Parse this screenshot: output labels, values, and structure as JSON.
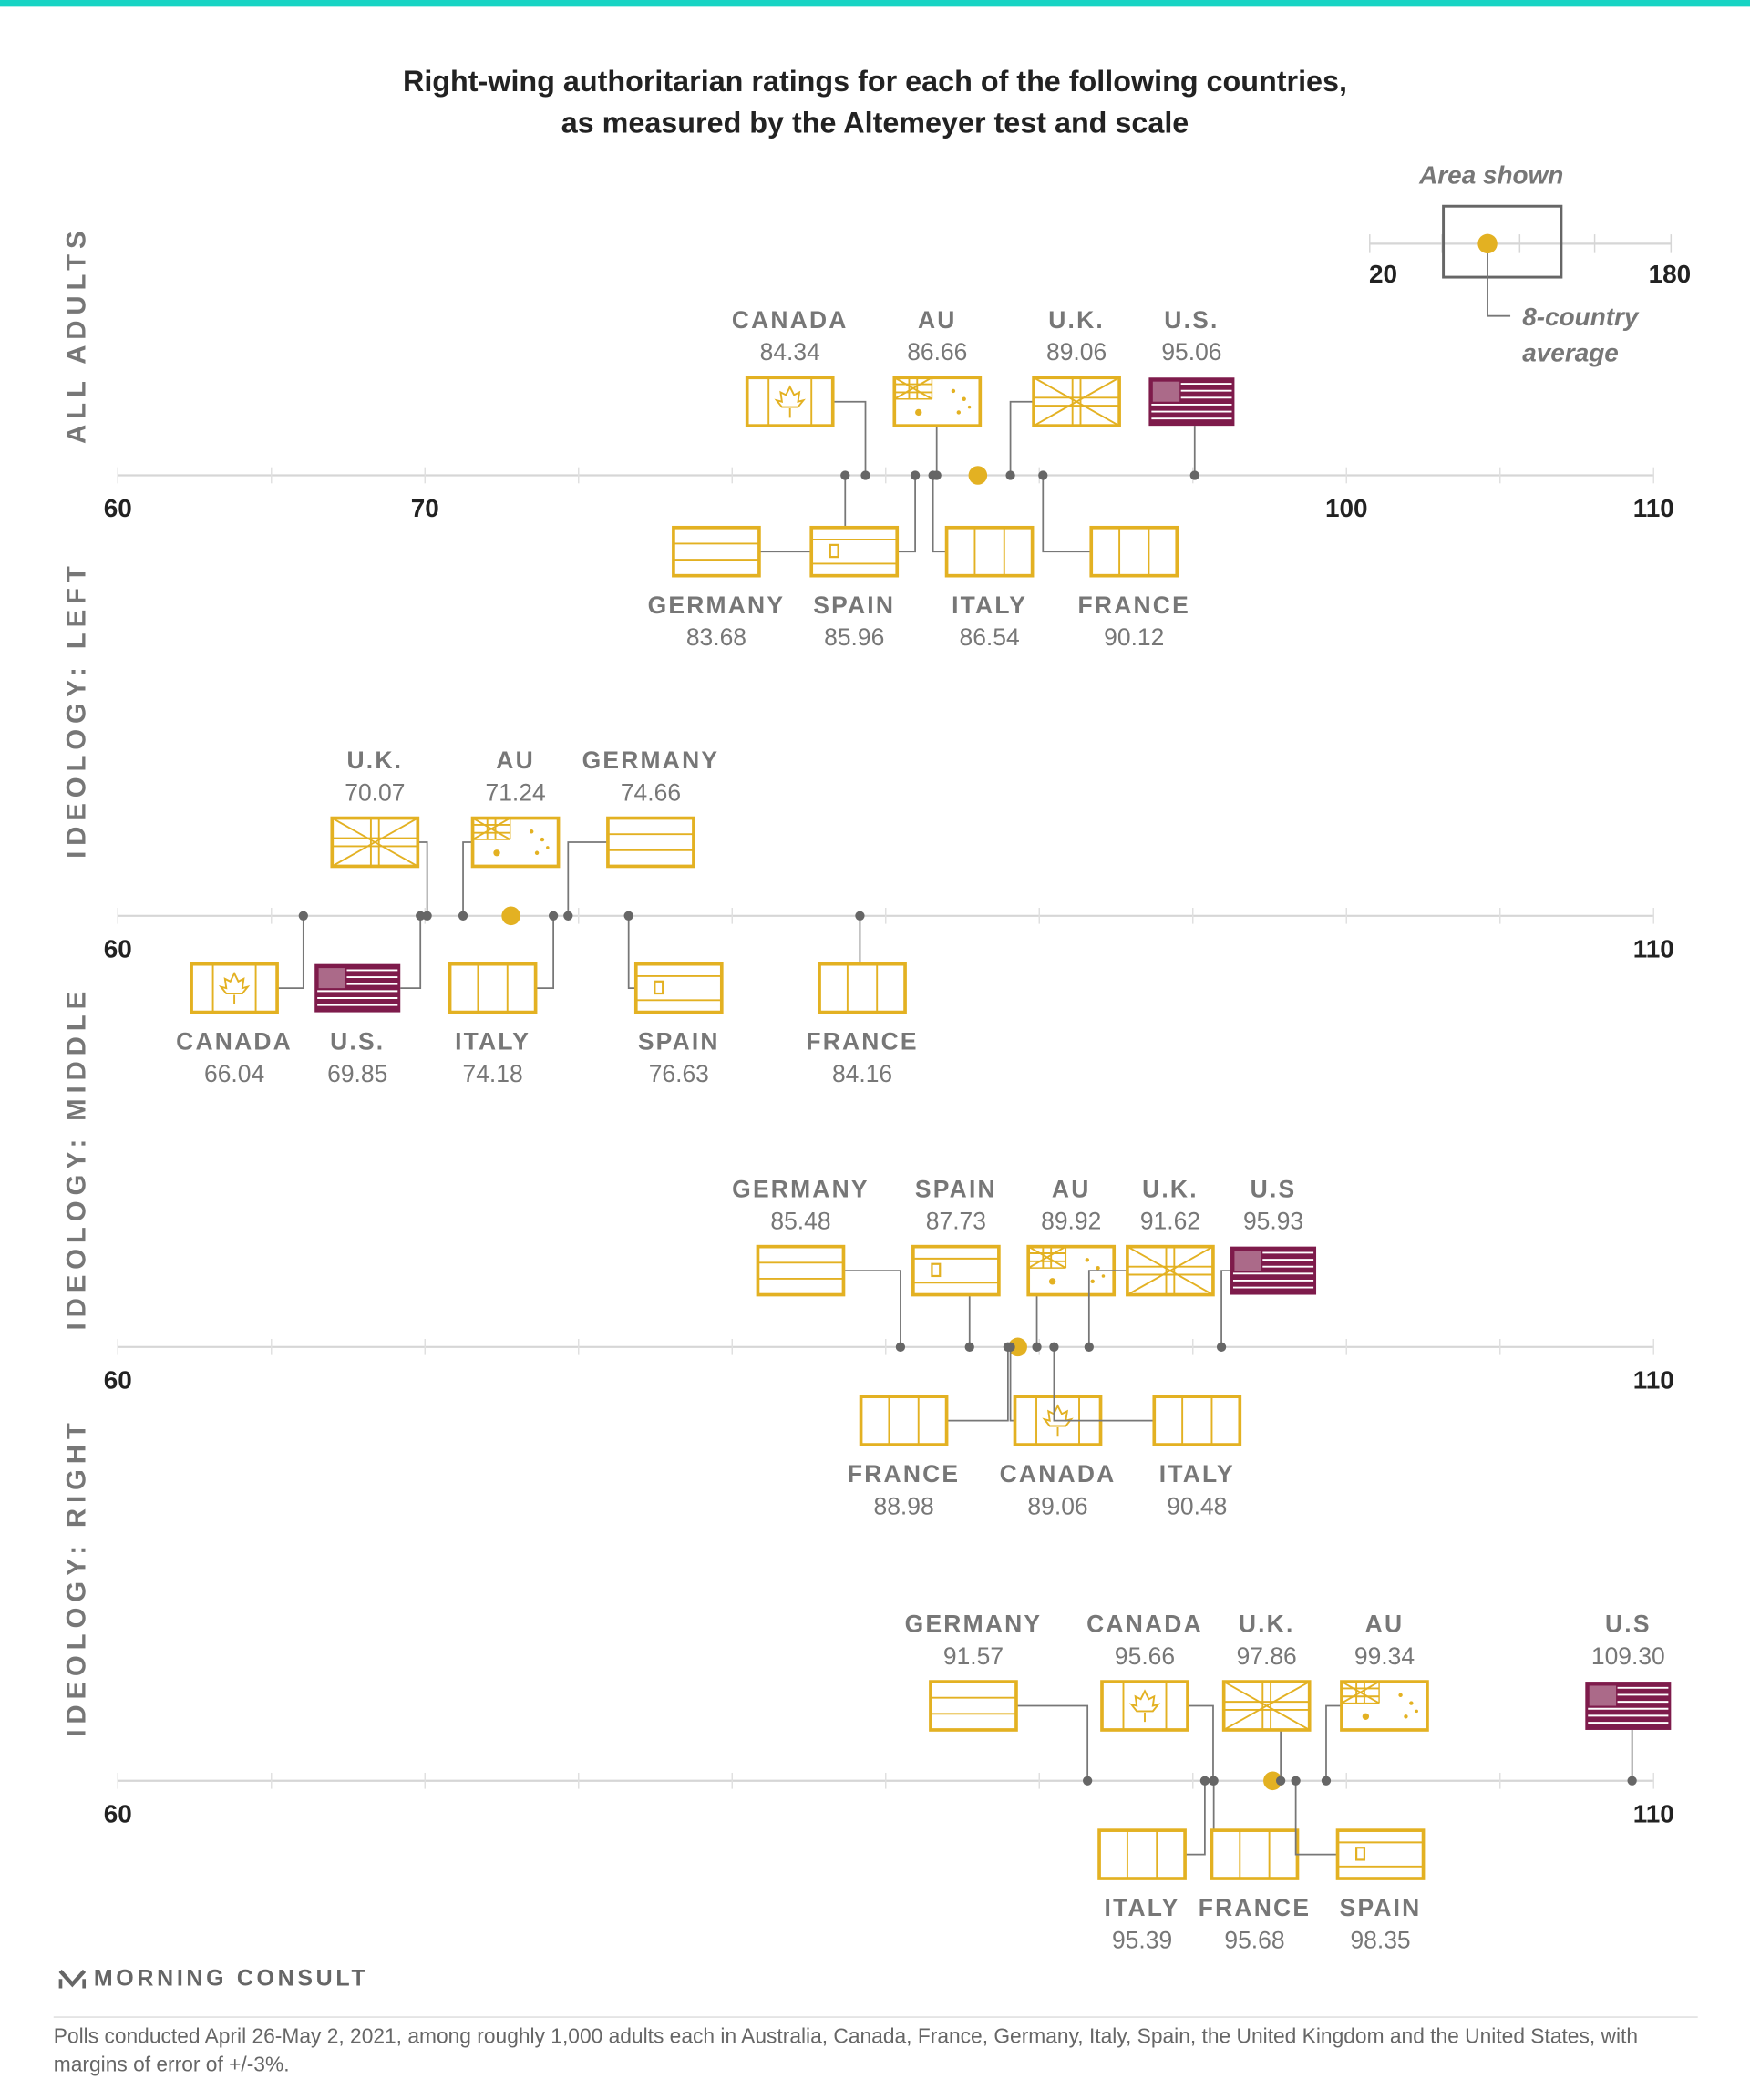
{
  "title_line1": "Right-wing authoritarian ratings for each of the following countries,",
  "title_line2": "as measured by the Altemeyer test and scale",
  "legend": {
    "title": "Area shown",
    "min_label": "20",
    "max_label": "180",
    "avg_label_1": "8-country",
    "avg_label_2": "average"
  },
  "logo": "MORNING CONSULT",
  "footnote": "Polls conducted April 26-May 2, 2021, among roughly 1,000 adults each in Australia, Canada, France, Germany, Italy, Spain, the United Kingdom and the United States, with margins of error of +/-3%.",
  "colors": {
    "accent": "#17d4c4",
    "flag_gold": "#e3b122",
    "us_flag": "#7e1b4b",
    "average_dot": "#e3b122",
    "point": "#666666"
  },
  "chart_data": {
    "type": "scatter",
    "title": "Right-wing authoritarian ratings for each of the following countries, as measured by the Altemeyer test and scale",
    "xlim": [
      60,
      110
    ],
    "panels": [
      {
        "name": "ALL ADULTS",
        "average": 88.0,
        "tick_labels": [
          "60",
          "70",
          "100",
          "110"
        ],
        "tick_values": [
          60,
          70,
          100,
          110
        ],
        "points": [
          {
            "country": "CANADA",
            "value": 84.34,
            "value_label": "84.34",
            "flag": "canada",
            "side": "above"
          },
          {
            "country": "AU",
            "value": 86.66,
            "value_label": "86.66",
            "flag": "australia",
            "side": "above"
          },
          {
            "country": "U.K.",
            "value": 89.06,
            "value_label": "89.06",
            "flag": "uk",
            "side": "above"
          },
          {
            "country": "U.S.",
            "value": 95.06,
            "value_label": "95.06",
            "flag": "us",
            "side": "above"
          },
          {
            "country": "GERMANY",
            "value": 83.68,
            "value_label": "83.68",
            "flag": "germany",
            "side": "below"
          },
          {
            "country": "SPAIN",
            "value": 85.96,
            "value_label": "85.96",
            "flag": "spain",
            "side": "below"
          },
          {
            "country": "ITALY",
            "value": 86.54,
            "value_label": "86.54",
            "flag": "italy",
            "side": "below"
          },
          {
            "country": "FRANCE",
            "value": 90.12,
            "value_label": "90.12",
            "flag": "france",
            "side": "below"
          }
        ]
      },
      {
        "name": "IDEOLOGY: LEFT",
        "average": 72.8,
        "tick_labels": [
          "60",
          "110"
        ],
        "tick_values": [
          60,
          110
        ],
        "points": [
          {
            "country": "U.K.",
            "value": 70.07,
            "value_label": "70.07",
            "flag": "uk",
            "side": "above"
          },
          {
            "country": "AU",
            "value": 71.24,
            "value_label": "71.24",
            "flag": "australia",
            "side": "above"
          },
          {
            "country": "GERMANY",
            "value": 74.66,
            "value_label": "74.66",
            "flag": "germany",
            "side": "above"
          },
          {
            "country": "CANADA",
            "value": 66.04,
            "value_label": "66.04",
            "flag": "canada",
            "side": "below"
          },
          {
            "country": "U.S.",
            "value": 69.85,
            "value_label": "69.85",
            "flag": "us",
            "side": "below"
          },
          {
            "country": "ITALY",
            "value": 74.18,
            "value_label": "74.18",
            "flag": "italy",
            "side": "below"
          },
          {
            "country": "SPAIN",
            "value": 76.63,
            "value_label": "76.63",
            "flag": "spain",
            "side": "below"
          },
          {
            "country": "FRANCE",
            "value": 84.16,
            "value_label": "84.16",
            "flag": "france",
            "side": "below"
          }
        ]
      },
      {
        "name": "IDEOLOGY: MIDDLE",
        "average": 89.3,
        "tick_labels": [
          "60",
          "110"
        ],
        "tick_values": [
          60,
          110
        ],
        "points": [
          {
            "country": "GERMANY",
            "value": 85.48,
            "value_label": "85.48",
            "flag": "germany",
            "side": "above"
          },
          {
            "country": "SPAIN",
            "value": 87.73,
            "value_label": "87.73",
            "flag": "spain",
            "side": "above"
          },
          {
            "country": "AU",
            "value": 89.92,
            "value_label": "89.92",
            "flag": "australia",
            "side": "above"
          },
          {
            "country": "U.K.",
            "value": 91.62,
            "value_label": "91.62",
            "flag": "uk",
            "side": "above"
          },
          {
            "country": "U.S",
            "value": 95.93,
            "value_label": "95.93",
            "flag": "us",
            "side": "above"
          },
          {
            "country": "FRANCE",
            "value": 88.98,
            "value_label": "88.98",
            "flag": "france",
            "side": "below"
          },
          {
            "country": "CANADA",
            "value": 89.06,
            "value_label": "89.06",
            "flag": "canada",
            "side": "below"
          },
          {
            "country": "ITALY",
            "value": 90.48,
            "value_label": "90.48",
            "flag": "italy",
            "side": "below"
          }
        ]
      },
      {
        "name": "IDEOLOGY: RIGHT",
        "average": 97.6,
        "tick_labels": [
          "60",
          "110"
        ],
        "tick_values": [
          60,
          110
        ],
        "points": [
          {
            "country": "GERMANY",
            "value": 91.57,
            "value_label": "91.57",
            "flag": "germany",
            "side": "above"
          },
          {
            "country": "CANADA",
            "value": 95.66,
            "value_label": "95.66",
            "flag": "canada",
            "side": "above"
          },
          {
            "country": "U.K.",
            "value": 97.86,
            "value_label": "97.86",
            "flag": "uk",
            "side": "above"
          },
          {
            "country": "AU",
            "value": 99.34,
            "value_label": "99.34",
            "flag": "australia",
            "side": "above"
          },
          {
            "country": "U.S",
            "value": 109.3,
            "value_label": "109.30",
            "flag": "us",
            "side": "above"
          },
          {
            "country": "ITALY",
            "value": 95.39,
            "value_label": "95.39",
            "flag": "italy",
            "side": "below"
          },
          {
            "country": "FRANCE",
            "value": 95.68,
            "value_label": "95.68",
            "flag": "france",
            "side": "below"
          },
          {
            "country": "SPAIN",
            "value": 98.35,
            "value_label": "98.35",
            "flag": "spain",
            "side": "below"
          }
        ]
      }
    ]
  }
}
